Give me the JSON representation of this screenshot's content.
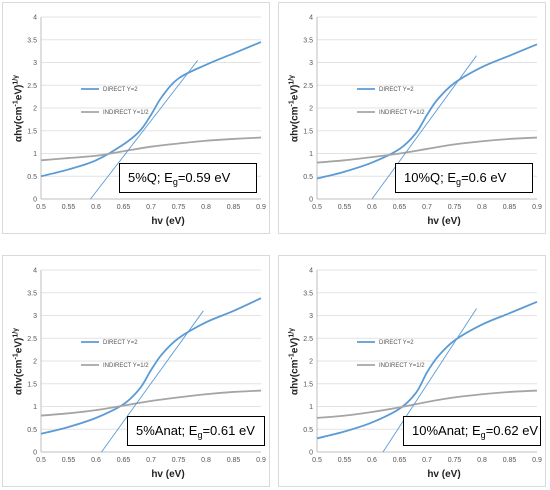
{
  "chart_data": [
    {
      "type": "line",
      "panel_index": 0,
      "sample": "5%Q",
      "eg_label": "E",
      "eg_subscript": "g",
      "eg_value": "=0.59 eV",
      "xlabel": "hv (eV)",
      "ylabel": "αhv(cm",
      "ylabel_sup": "-1",
      "ylabel_mid": "eV)",
      "ylabel_sup2": "1/γ",
      "xlim": [
        0.5,
        0.9
      ],
      "ylim": [
        0,
        4
      ],
      "x_ticks": [
        "0.5",
        "0.55",
        "0.6",
        "0.65",
        "0.7",
        "0.75",
        "0.8",
        "0.85",
        "0.9"
      ],
      "y_ticks": [
        "0",
        "0.5",
        "1",
        "1.5",
        "2",
        "2.5",
        "3",
        "3.5",
        "4"
      ],
      "legend_position": "left",
      "series": [
        {
          "name": "DIRECT Y=2",
          "color": "#5b9bd5",
          "x": [
            0.5,
            0.55,
            0.6,
            0.65,
            0.68,
            0.7,
            0.72,
            0.75,
            0.8,
            0.85,
            0.9
          ],
          "y": [
            0.5,
            0.65,
            0.85,
            1.2,
            1.5,
            1.85,
            2.25,
            2.65,
            2.95,
            3.2,
            3.45
          ]
        },
        {
          "name": "INDIRECT Y=1/2",
          "color": "#a5a5a5",
          "x": [
            0.5,
            0.55,
            0.6,
            0.65,
            0.7,
            0.75,
            0.8,
            0.85,
            0.9
          ],
          "y": [
            0.85,
            0.9,
            0.95,
            1.05,
            1.15,
            1.22,
            1.28,
            1.32,
            1.35
          ]
        },
        {
          "name": "",
          "color": "#5b9bd5",
          "style": "tangent",
          "x": [
            0.59,
            0.785
          ],
          "y": [
            0.0,
            3.05
          ]
        }
      ]
    },
    {
      "type": "line",
      "panel_index": 1,
      "sample": "10%Q",
      "eg_label": "E",
      "eg_subscript": "g",
      "eg_value": "=0.6 eV",
      "xlabel": "hv (eV)",
      "ylabel": "αhv(cm",
      "ylabel_sup": "-1",
      "ylabel_mid": "eV)",
      "ylabel_sup2": "1/γ",
      "xlim": [
        0.5,
        0.9
      ],
      "ylim": [
        0,
        4
      ],
      "x_ticks": [
        "0.5",
        "0.55",
        "0.6",
        "0.65",
        "0.7",
        "0.75",
        "0.8",
        "0.85",
        "0.9"
      ],
      "y_ticks": [
        "0",
        "0.5",
        "1",
        "1.5",
        "2",
        "2.5",
        "3",
        "3.5",
        "4"
      ],
      "legend_position": "left",
      "series": [
        {
          "name": "DIRECT Y=2",
          "color": "#5b9bd5",
          "x": [
            0.5,
            0.55,
            0.6,
            0.65,
            0.68,
            0.7,
            0.72,
            0.75,
            0.8,
            0.85,
            0.9
          ],
          "y": [
            0.45,
            0.6,
            0.8,
            1.1,
            1.45,
            1.85,
            2.2,
            2.55,
            2.9,
            3.15,
            3.4
          ]
        },
        {
          "name": "INDIRECT Y=1/2",
          "color": "#a5a5a5",
          "x": [
            0.5,
            0.55,
            0.6,
            0.65,
            0.7,
            0.75,
            0.8,
            0.85,
            0.9
          ],
          "y": [
            0.8,
            0.85,
            0.92,
            1.0,
            1.1,
            1.2,
            1.27,
            1.32,
            1.35
          ]
        },
        {
          "name": "",
          "color": "#5b9bd5",
          "style": "tangent",
          "x": [
            0.6,
            0.79
          ],
          "y": [
            0.0,
            3.15
          ]
        }
      ]
    },
    {
      "type": "line",
      "panel_index": 2,
      "sample": "5%Anat",
      "eg_label": "E",
      "eg_subscript": "g",
      "eg_value": "=0.61 eV",
      "xlabel": "hv (eV)",
      "ylabel": "αhv(cm",
      "ylabel_sup": "-1",
      "ylabel_mid": "eV)",
      "ylabel_sup2": "1/γ",
      "xlim": [
        0.5,
        0.9
      ],
      "ylim": [
        0,
        4
      ],
      "x_ticks": [
        "0.5",
        "0.55",
        "0.6",
        "0.65",
        "0.7",
        "0.75",
        "0.8",
        "0.85",
        "0.9"
      ],
      "y_ticks": [
        "0",
        "0.5",
        "1",
        "1.5",
        "2",
        "2.5",
        "3",
        "3.5",
        "4"
      ],
      "legend_position": "left",
      "series": [
        {
          "name": "DIRECT Y=2",
          "color": "#5b9bd5",
          "x": [
            0.5,
            0.55,
            0.6,
            0.65,
            0.68,
            0.7,
            0.72,
            0.75,
            0.8,
            0.85,
            0.9
          ],
          "y": [
            0.4,
            0.55,
            0.75,
            1.05,
            1.4,
            1.8,
            2.15,
            2.5,
            2.85,
            3.1,
            3.38
          ]
        },
        {
          "name": "INDIRECT Y=1/2",
          "color": "#a5a5a5",
          "x": [
            0.5,
            0.55,
            0.6,
            0.65,
            0.7,
            0.75,
            0.8,
            0.85,
            0.9
          ],
          "y": [
            0.8,
            0.85,
            0.92,
            1.02,
            1.12,
            1.2,
            1.27,
            1.32,
            1.35
          ]
        },
        {
          "name": "",
          "color": "#5b9bd5",
          "style": "tangent",
          "x": [
            0.61,
            0.795
          ],
          "y": [
            0.0,
            3.1
          ]
        }
      ]
    },
    {
      "type": "line",
      "panel_index": 3,
      "sample": "10%Anat",
      "eg_label": "E",
      "eg_subscript": "g",
      "eg_value": "=0.62 eV",
      "xlabel": "hv (eV)",
      "ylabel": "αhv(cm",
      "ylabel_sup": "-1",
      "ylabel_mid": "eV)",
      "ylabel_sup2": "1/γ",
      "xlim": [
        0.5,
        0.9
      ],
      "ylim": [
        0,
        4
      ],
      "x_ticks": [
        "0.5",
        "0.55",
        "0.6",
        "0.65",
        "0.7",
        "0.75",
        "0.8",
        "0.85",
        "0.9"
      ],
      "y_ticks": [
        "0",
        "0.5",
        "1",
        "1.5",
        "2",
        "2.5",
        "3",
        "3.5",
        "4"
      ],
      "legend_position": "left",
      "series": [
        {
          "name": "DIRECT Y=2",
          "color": "#5b9bd5",
          "x": [
            0.5,
            0.55,
            0.6,
            0.65,
            0.68,
            0.7,
            0.72,
            0.75,
            0.8,
            0.85,
            0.9
          ],
          "y": [
            0.3,
            0.45,
            0.65,
            0.95,
            1.3,
            1.75,
            2.1,
            2.45,
            2.8,
            3.05,
            3.3
          ]
        },
        {
          "name": "INDIRECT Y=1/2",
          "color": "#a5a5a5",
          "x": [
            0.5,
            0.55,
            0.6,
            0.65,
            0.7,
            0.75,
            0.8,
            0.85,
            0.9
          ],
          "y": [
            0.75,
            0.8,
            0.88,
            0.98,
            1.1,
            1.2,
            1.27,
            1.32,
            1.35
          ]
        },
        {
          "name": "",
          "color": "#5b9bd5",
          "style": "tangent",
          "x": [
            0.62,
            0.79
          ],
          "y": [
            0.0,
            3.15
          ]
        }
      ]
    }
  ]
}
